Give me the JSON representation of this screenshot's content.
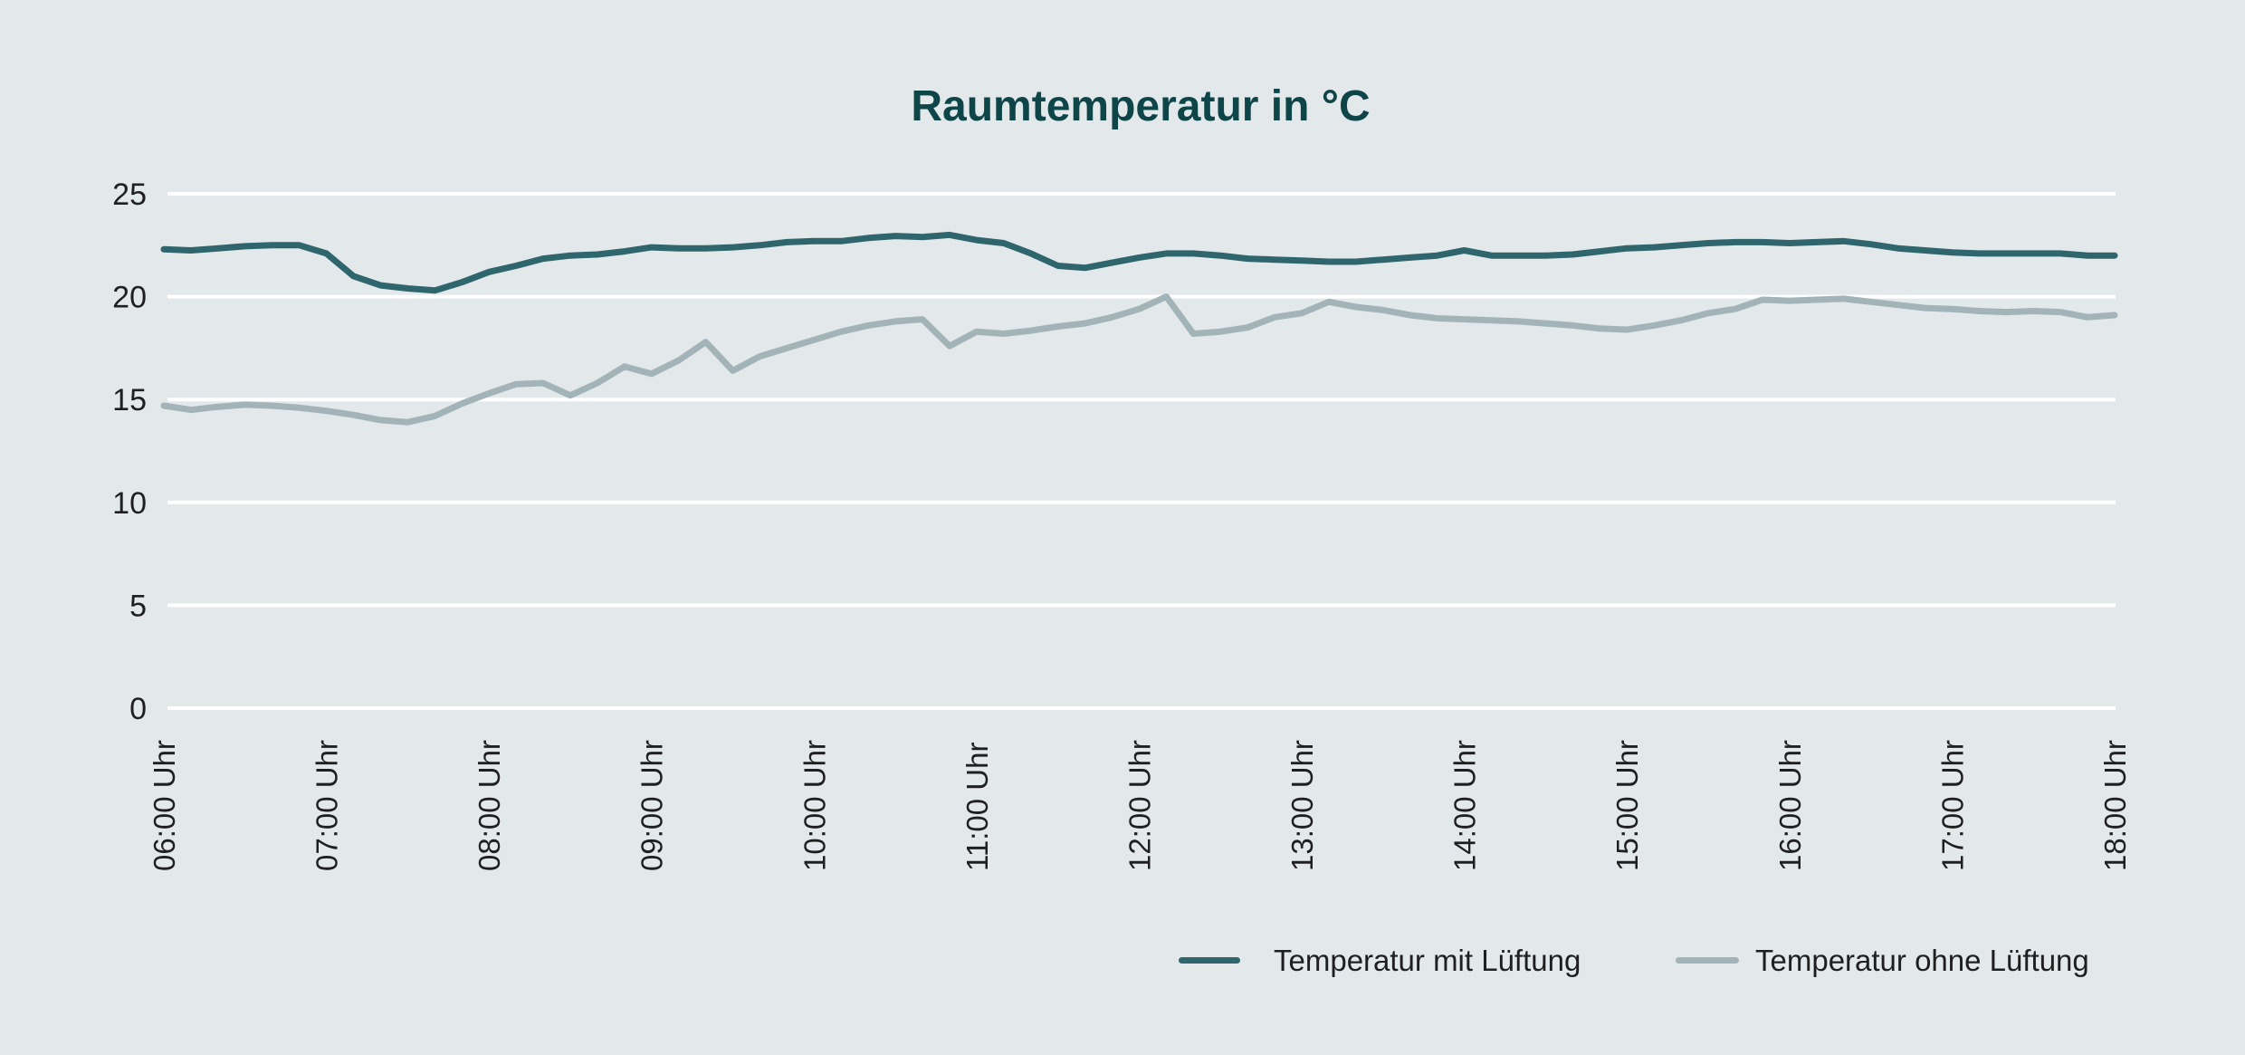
{
  "page": {
    "background_color": "#e3e8ea"
  },
  "chart_data": {
    "type": "line",
    "title": "Raumtemperatur in °C",
    "title_color": "#0e4549",
    "grid_color": "#ffffff",
    "axis_text_color": "#1f1f1f",
    "grid": true,
    "legend_position": "bottom-right",
    "x_start_hour": 6,
    "x_end_hour": 18,
    "x_step_minutes": 10,
    "x_tick_labels": [
      "06:00 Uhr",
      "07:00 Uhr",
      "08:00 Uhr",
      "09:00 Uhr",
      "10:00 Uhr",
      "11:00 Uhr",
      "12:00 Uhr",
      "13:00 Uhr",
      "14:00 Uhr",
      "15:00 Uhr",
      "16:00 Uhr",
      "17:00 Uhr",
      "18:00 Uhr"
    ],
    "y_ticks": [
      0,
      5,
      10,
      15,
      20,
      25
    ],
    "ylim": [
      0,
      25
    ],
    "ylabel": "",
    "xlabel": "",
    "series": [
      {
        "name": "Temperatur mit Lüftung",
        "color": "#2f656d",
        "values": [
          22.3,
          22.25,
          22.35,
          22.45,
          22.5,
          22.5,
          22.1,
          21.0,
          20.55,
          20.4,
          20.3,
          20.7,
          21.2,
          21.5,
          21.85,
          22.0,
          22.05,
          22.2,
          22.4,
          22.35,
          22.35,
          22.4,
          22.5,
          22.65,
          22.7,
          22.7,
          22.85,
          22.95,
          22.9,
          23.0,
          22.75,
          22.6,
          22.1,
          21.5,
          21.4,
          21.65,
          21.9,
          22.1,
          22.1,
          22.0,
          21.85,
          21.8,
          21.75,
          21.7,
          21.7,
          21.8,
          21.9,
          22.0,
          22.25,
          22.0,
          22.0,
          22.0,
          22.05,
          22.2,
          22.35,
          22.4,
          22.5,
          22.6,
          22.65,
          22.65,
          22.6,
          22.65,
          22.7,
          22.55,
          22.35,
          22.25,
          22.15,
          22.1,
          22.1,
          22.1,
          22.1,
          22.0,
          22.0
        ]
      },
      {
        "name": "Temperatur ohne Lüftung",
        "color": "#a3b4b8",
        "values": [
          14.7,
          14.5,
          14.65,
          14.75,
          14.7,
          14.6,
          14.45,
          14.25,
          14.0,
          13.9,
          14.2,
          14.8,
          15.3,
          15.75,
          15.8,
          15.2,
          15.8,
          16.6,
          16.25,
          16.9,
          17.8,
          16.4,
          17.1,
          17.5,
          17.9,
          18.3,
          18.6,
          18.8,
          18.9,
          17.6,
          18.3,
          18.2,
          18.35,
          18.55,
          18.7,
          19.0,
          19.4,
          20.0,
          18.2,
          18.3,
          18.5,
          19.0,
          19.2,
          19.75,
          19.5,
          19.35,
          19.1,
          18.95,
          18.9,
          18.85,
          18.8,
          18.7,
          18.6,
          18.45,
          18.4,
          18.6,
          18.85,
          19.2,
          19.4,
          19.85,
          19.8,
          19.85,
          19.9,
          19.75,
          19.6,
          19.45,
          19.4,
          19.3,
          19.25,
          19.3,
          19.25,
          19.0,
          19.1
        ]
      }
    ]
  }
}
